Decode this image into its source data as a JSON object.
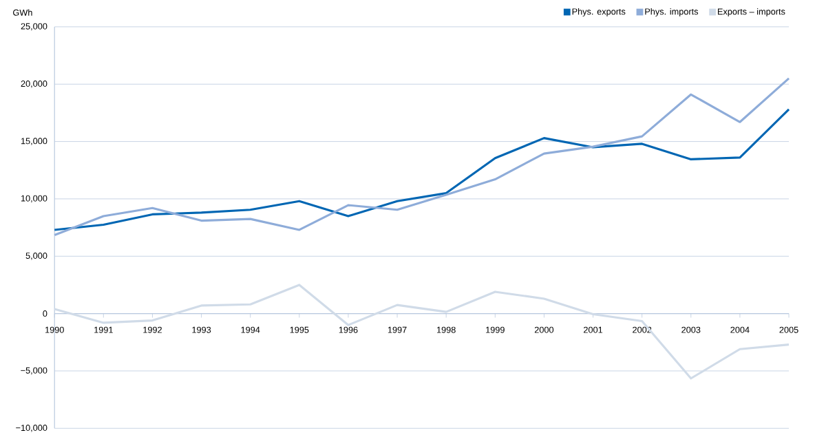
{
  "chart_data": {
    "type": "line",
    "ylabel": "GWh",
    "categories": [
      "1990",
      "1991",
      "1992",
      "1993",
      "1994",
      "1995",
      "1996",
      "1997",
      "1998",
      "1999",
      "2000",
      "2001",
      "2002",
      "2003",
      "2004",
      "2005"
    ],
    "series": [
      {
        "name": "Phys. exports",
        "color": "#0066b3",
        "values": [
          7300,
          7750,
          8650,
          8800,
          9050,
          9800,
          8500,
          9800,
          10500,
          13550,
          15300,
          14500,
          14800,
          13450,
          13600,
          17800
        ]
      },
      {
        "name": "Phys. imports",
        "color": "#8eacd9",
        "values": [
          6850,
          8500,
          9200,
          8100,
          8250,
          7300,
          9450,
          9050,
          10350,
          11700,
          13950,
          14550,
          15450,
          19100,
          16700,
          20500
        ]
      },
      {
        "name": "Exports – imports",
        "color": "#d0dbe8",
        "values": [
          400,
          -800,
          -600,
          700,
          800,
          2500,
          -1000,
          750,
          150,
          1900,
          1300,
          -50,
          -650,
          -5650,
          -3100,
          -2700
        ]
      }
    ],
    "ylim": [
      -10000,
      25000
    ],
    "yticks": [
      {
        "value": -10000,
        "label": "−10,000"
      },
      {
        "value": -5000,
        "label": "−5,000"
      },
      0,
      {
        "value": 5000,
        "label": "5,000"
      },
      {
        "value": 10000,
        "label": "10,000"
      },
      {
        "value": 15000,
        "label": "15,000"
      },
      {
        "value": 20000,
        "label": "20,000"
      },
      {
        "value": 25000,
        "label": "25,000"
      }
    ],
    "grid": "y",
    "legend": "top right",
    "marker": "none",
    "line_style": "solid"
  }
}
